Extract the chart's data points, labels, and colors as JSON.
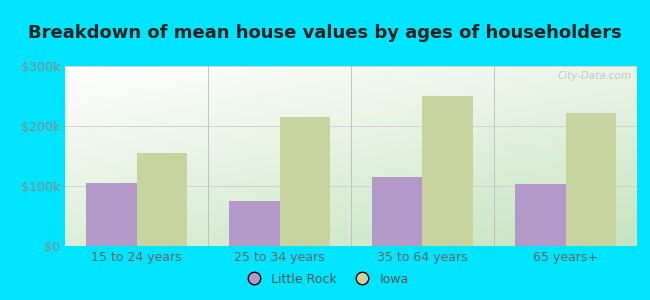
{
  "title": "Breakdown of mean house values by ages of householders",
  "categories": [
    "15 to 24 years",
    "25 to 34 years",
    "35 to 64 years",
    "65 years+"
  ],
  "little_rock": [
    105000,
    75000,
    115000,
    103000
  ],
  "iowa": [
    155000,
    215000,
    250000,
    222000
  ],
  "little_rock_color": "#b399c8",
  "iowa_color": "#c8d4a0",
  "ylim": [
    0,
    300000
  ],
  "yticks": [
    0,
    100000,
    200000,
    300000
  ],
  "ytick_labels": [
    "$0",
    "$100k",
    "$200k",
    "$300k"
  ],
  "legend_labels": [
    "Little Rock",
    "Iowa"
  ],
  "background_outer": "#00e5ff",
  "watermark": "City-Data.com",
  "bar_width": 0.35,
  "title_fontsize": 13,
  "tick_fontsize": 9,
  "legend_fontsize": 9
}
